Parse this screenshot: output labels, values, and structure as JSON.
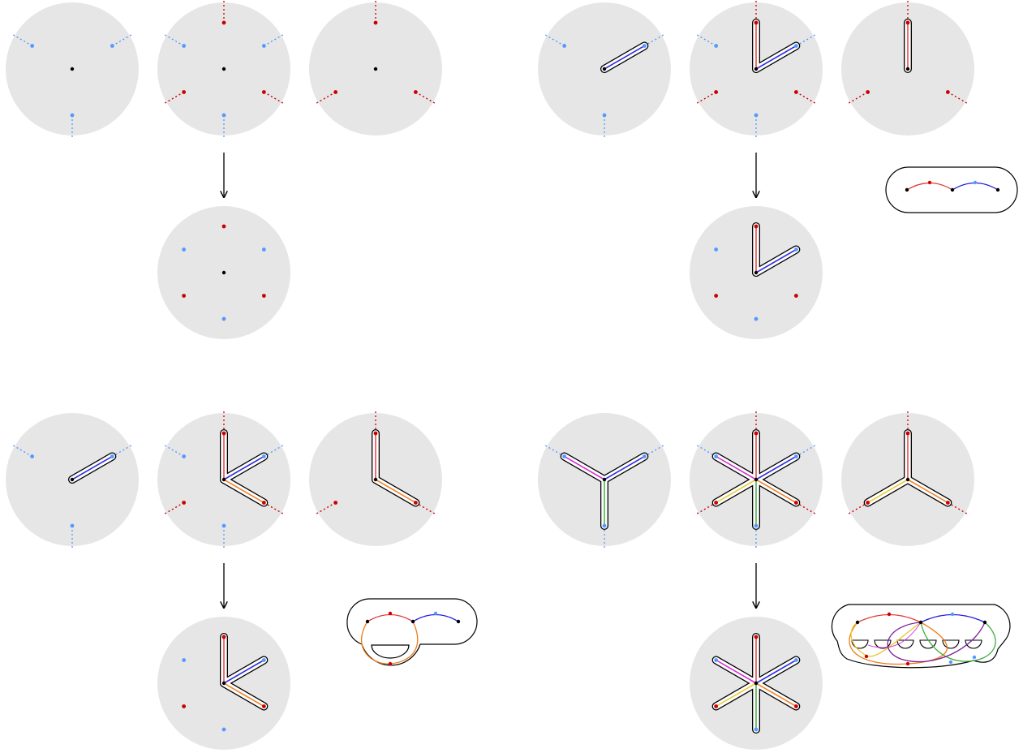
{
  "colors": {
    "disk": "#e6e6e6",
    "outline": "#000000",
    "center": "#000000",
    "red_point": "#cc0000",
    "blue_point": "#5599ff",
    "red_edge": "#e23b3b",
    "blue_edge": "#1c1ce0",
    "orange_edge": "#f07a18",
    "green_edge": "#3fae3f",
    "magenta_edge": "#d21fd2",
    "yellow_edge": "#e8c62a",
    "purple_edge": "#7a1f9e"
  },
  "panels": [
    {
      "name": "panel-top-left",
      "disks": [
        {
          "role": "left-factor",
          "points": [
            "blue",
            "blue",
            "blue"
          ],
          "ticks": [
            "blue",
            "blue",
            "blue"
          ],
          "edges": []
        },
        {
          "role": "product",
          "points": [
            "blue",
            "blue",
            "blue",
            "red",
            "red",
            "red"
          ],
          "ticks": [
            "blue",
            "blue",
            "blue",
            "red",
            "red",
            "red"
          ],
          "edges": []
        },
        {
          "role": "right-factor",
          "points": [
            "red",
            "red",
            "red"
          ],
          "ticks": [
            "red",
            "red",
            "red"
          ],
          "edges": []
        },
        {
          "role": "result",
          "points": [
            "blue",
            "blue",
            "blue",
            "red",
            "red",
            "red"
          ],
          "ticks": [],
          "edges": []
        }
      ],
      "inset": null
    },
    {
      "name": "panel-top-right",
      "disks": [
        {
          "role": "left-factor",
          "points": [
            "blue",
            "blue",
            "blue"
          ],
          "ticks": [
            "blue",
            "blue",
            "blue"
          ],
          "edges": [
            {
              "dir": "blue-ne",
              "color": "blue"
            }
          ]
        },
        {
          "role": "product",
          "points": [
            "blue",
            "blue",
            "blue",
            "red",
            "red",
            "red"
          ],
          "ticks": [
            "blue",
            "blue",
            "blue",
            "red",
            "red",
            "red"
          ],
          "edges": [
            {
              "dir": "red-n",
              "color": "red"
            },
            {
              "dir": "blue-ne",
              "color": "blue"
            }
          ]
        },
        {
          "role": "right-factor",
          "points": [
            "red",
            "red",
            "red"
          ],
          "ticks": [
            "red",
            "red",
            "red"
          ],
          "edges": [
            {
              "dir": "red-n",
              "color": "red"
            }
          ]
        },
        {
          "role": "result",
          "points": [
            "blue",
            "blue",
            "blue",
            "red",
            "red",
            "red"
          ],
          "ticks": [],
          "edges": [
            {
              "dir": "red-n",
              "color": "red"
            },
            {
              "dir": "blue-ne",
              "color": "blue"
            }
          ]
        }
      ],
      "inset": "small"
    },
    {
      "name": "panel-bottom-left",
      "disks": [
        {
          "role": "left-factor",
          "points": [
            "blue",
            "blue",
            "blue"
          ],
          "ticks": [
            "blue",
            "blue",
            "blue"
          ],
          "edges": [
            {
              "dir": "blue-ne",
              "color": "blue"
            }
          ]
        },
        {
          "role": "product",
          "points": [
            "blue",
            "blue",
            "blue",
            "red",
            "red",
            "red"
          ],
          "ticks": [
            "blue",
            "blue",
            "blue",
            "red",
            "red",
            "red"
          ],
          "edges": [
            {
              "dir": "red-n",
              "color": "red"
            },
            {
              "dir": "blue-ne",
              "color": "blue"
            },
            {
              "dir": "red-se",
              "color": "orange"
            }
          ]
        },
        {
          "role": "right-factor",
          "points": [
            "red",
            "red",
            "red"
          ],
          "ticks": [
            "red",
            "red",
            "red"
          ],
          "edges": [
            {
              "dir": "red-n",
              "color": "red"
            },
            {
              "dir": "red-se",
              "color": "orange"
            }
          ]
        },
        {
          "role": "result",
          "points": [
            "blue",
            "blue",
            "blue",
            "red",
            "red",
            "red"
          ],
          "ticks": [],
          "edges": [
            {
              "dir": "red-n",
              "color": "red"
            },
            {
              "dir": "blue-ne",
              "color": "blue"
            },
            {
              "dir": "red-se",
              "color": "orange"
            }
          ]
        }
      ],
      "inset": "medium"
    },
    {
      "name": "panel-bottom-right",
      "disks": [
        {
          "role": "left-factor",
          "points": [
            "blue",
            "blue",
            "blue"
          ],
          "ticks": [
            "blue",
            "blue",
            "blue"
          ],
          "edges": [
            {
              "dir": "blue-ne",
              "color": "blue"
            },
            {
              "dir": "blue-nw",
              "color": "magenta"
            },
            {
              "dir": "blue-s",
              "color": "green"
            }
          ]
        },
        {
          "role": "product",
          "points": [
            "blue",
            "blue",
            "blue",
            "red",
            "red",
            "red"
          ],
          "ticks": [
            "blue",
            "blue",
            "blue",
            "red",
            "red",
            "red"
          ],
          "edges": [
            {
              "dir": "red-n",
              "color": "red"
            },
            {
              "dir": "blue-ne",
              "color": "blue"
            },
            {
              "dir": "red-se",
              "color": "orange"
            },
            {
              "dir": "blue-s",
              "color": "green"
            },
            {
              "dir": "red-sw",
              "color": "yellow"
            },
            {
              "dir": "blue-nw",
              "color": "magenta"
            }
          ]
        },
        {
          "role": "right-factor",
          "points": [
            "red",
            "red",
            "red"
          ],
          "ticks": [
            "red",
            "red",
            "red"
          ],
          "edges": [
            {
              "dir": "red-n",
              "color": "red"
            },
            {
              "dir": "red-se",
              "color": "orange"
            },
            {
              "dir": "red-sw",
              "color": "yellow"
            }
          ]
        },
        {
          "role": "result",
          "points": [
            "blue",
            "blue",
            "blue",
            "red",
            "red",
            "red"
          ],
          "ticks": [],
          "edges": [
            {
              "dir": "red-n",
              "color": "red"
            },
            {
              "dir": "blue-ne",
              "color": "blue"
            },
            {
              "dir": "red-se",
              "color": "orange"
            },
            {
              "dir": "blue-s",
              "color": "green"
            },
            {
              "dir": "red-sw",
              "color": "yellow"
            },
            {
              "dir": "blue-nw",
              "color": "magenta"
            }
          ]
        }
      ],
      "inset": "large"
    }
  ]
}
